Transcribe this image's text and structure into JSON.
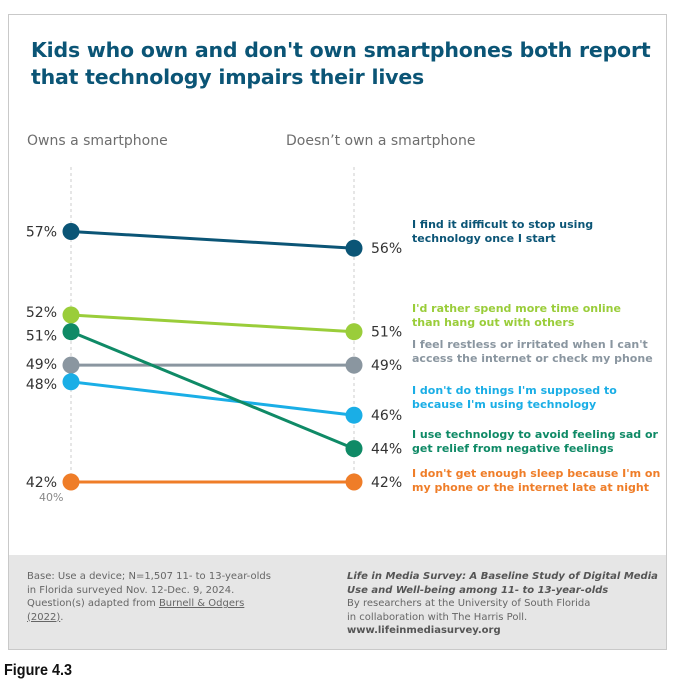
{
  "title": "Kids who own and don't own smartphones both report that technology impairs their lives",
  "figure_label": "Figure 4.3",
  "colors": {
    "title": "#0b5576",
    "guide": "#cccccc",
    "footer_bg": "#e6e6e6"
  },
  "chart_data": {
    "type": "line",
    "categories": [
      "Owns a smartphone",
      "Doesn’t own a smartphone"
    ],
    "y_axis_min_label": "40%",
    "ylim": [
      40,
      58
    ],
    "series": [
      {
        "name": "I find it difficult to stop using technology once I start",
        "values": [
          57,
          56
        ],
        "labels": [
          "57%",
          "56%"
        ],
        "color": "#0b5576",
        "text_lines": [
          "I find it difficult to stop using",
          "technology once I start"
        ]
      },
      {
        "name": "I'd rather spend more time online than hang out with others",
        "values": [
          52,
          51
        ],
        "labels": [
          "52%",
          "51%"
        ],
        "color": "#9acd3a",
        "text_lines": [
          "I'd rather spend more time online",
          "than hang out with others"
        ]
      },
      {
        "name": "I feel restless or irritated when I can't access the internet or check my phone",
        "values": [
          49,
          49
        ],
        "labels": [
          "49%",
          "49%"
        ],
        "color": "#8a96a0",
        "text_lines": [
          "I feel restless or irritated when I can't",
          "access the internet or check my phone"
        ]
      },
      {
        "name": "I don't do things I'm supposed to because I'm using technology",
        "values": [
          48,
          46
        ],
        "labels": [
          "48%",
          "46%"
        ],
        "color": "#1aaee6",
        "text_lines": [
          "I don't do things I'm supposed to",
          "because I'm using technology"
        ]
      },
      {
        "name": "I use technology to avoid feeling sad or get relief from negative feelings",
        "values": [
          51,
          44
        ],
        "labels": [
          "51%",
          "44%"
        ],
        "color": "#0f8a66",
        "text_lines": [
          "I use technology to avoid feeling sad or",
          "get relief from negative feelings"
        ]
      },
      {
        "name": "I don't get enough sleep because I'm on my phone or the internet late at night",
        "values": [
          42,
          42
        ],
        "labels": [
          "42%",
          "42%"
        ],
        "color": "#ef7d28",
        "text_lines": [
          "I don't get enough sleep because I'm on",
          "my phone or the internet late at night"
        ]
      }
    ]
  },
  "footer": {
    "left_lines": [
      "Base: Use a device; N=1,507 11- to 13-year-olds",
      "in Florida surveyed Nov. 12-Dec. 9, 2024.",
      "Question(s) adapted from"
    ],
    "left_ref": "Burnell & Odgers",
    "left_ref_year": "(2022)",
    "left_ref_end": ".",
    "right_title": "Life in Media Survey: A Baseline Study of Digital Media Use and Well-being among 11- to 13-year-olds",
    "right_lines": [
      "By researchers at the University of South Florida",
      "in collaboration with The Harris Poll."
    ],
    "right_site": "www.lifeinmediasurvey.org"
  }
}
